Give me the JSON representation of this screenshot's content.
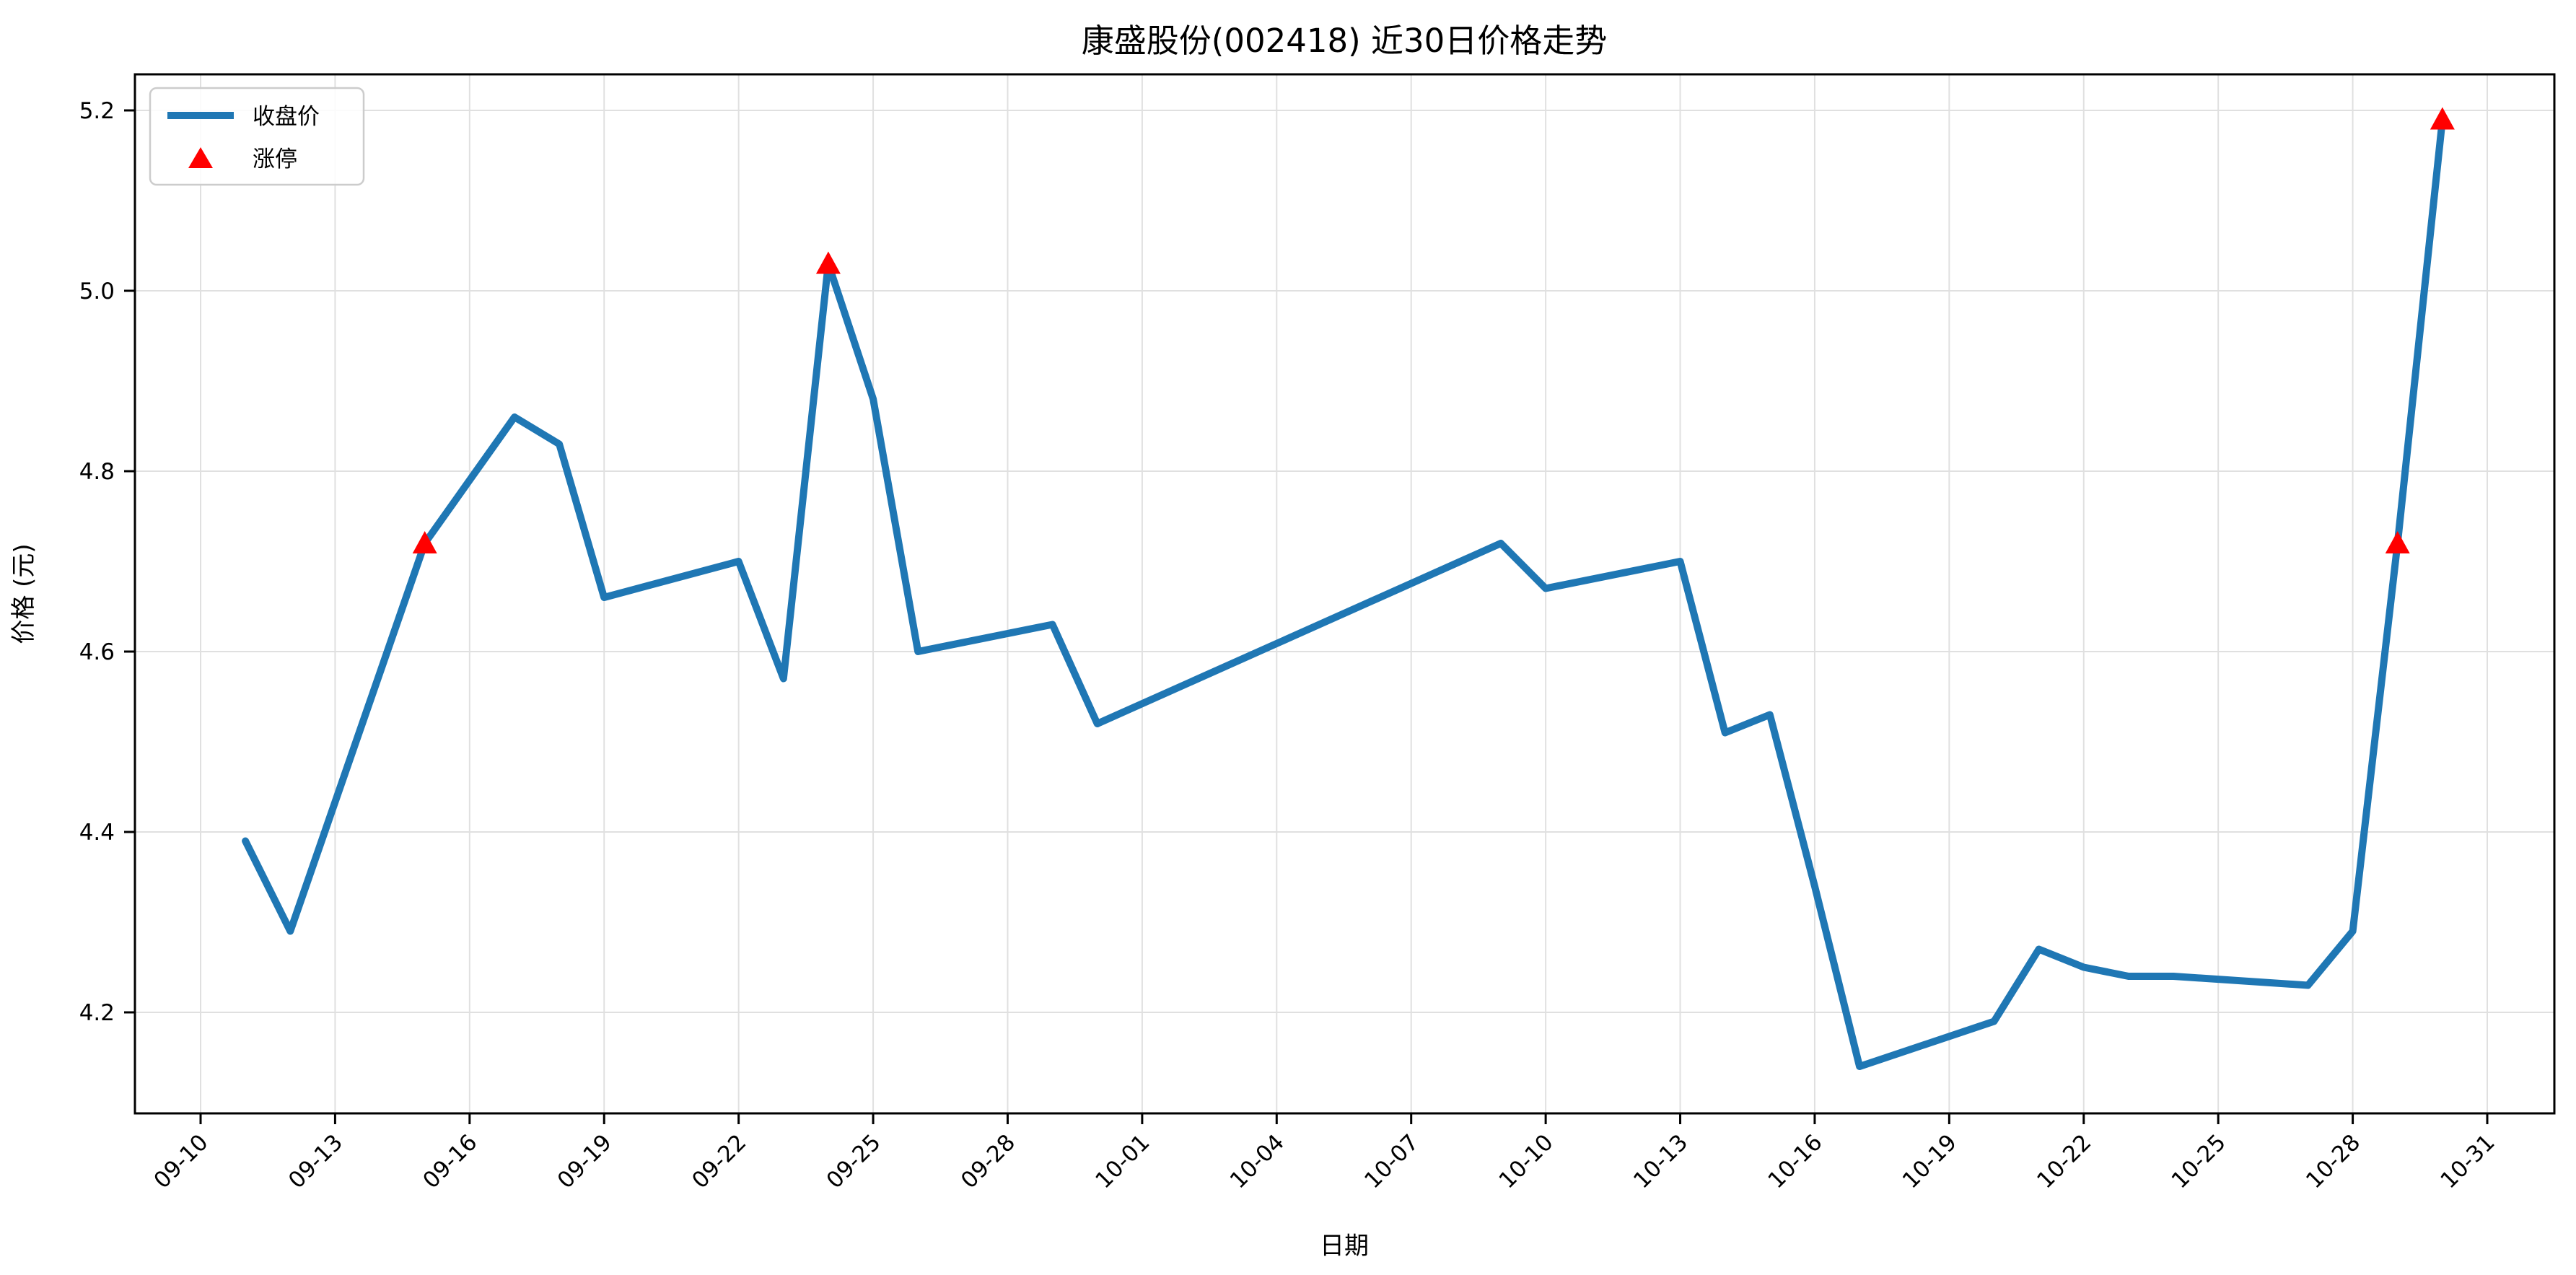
{
  "title": "康盛股份(002418) 近30日价格走势",
  "legend": {
    "items": [
      {
        "label": "收盘价",
        "type": "line",
        "color": "#1f77b4"
      },
      {
        "label": "涨停",
        "type": "triangle",
        "color": "#ff0000"
      }
    ]
  },
  "chart_data": {
    "type": "line",
    "title": "康盛股份(002418) 近30日价格走势",
    "xlabel": "日期",
    "ylabel": "价格 (元)",
    "grid": true,
    "legend_position": "upper left",
    "line_color": "#1f77b4",
    "marker_color": "#ff0000",
    "grid_color": "#e0e0e0",
    "spine_color": "#000000",
    "ylim": [
      4.09,
      5.28
    ],
    "y_ticks": [
      4.2,
      4.4,
      4.6,
      4.8,
      5.0,
      5.2
    ],
    "x_axis_start_date": "09-10",
    "x_tick_step_days": 3,
    "x_tick_labels": [
      "09-10",
      "09-13",
      "09-16",
      "09-19",
      "09-22",
      "09-25",
      "09-28",
      "10-01",
      "10-04",
      "10-07",
      "10-10",
      "10-13",
      "10-16",
      "10-19",
      "10-22",
      "10-25",
      "10-28",
      "10-31"
    ],
    "x_tick_days": [
      0,
      3,
      6,
      9,
      12,
      15,
      18,
      21,
      24,
      27,
      30,
      33,
      36,
      39,
      42,
      45,
      48,
      51
    ],
    "series": [
      {
        "name": "收盘价",
        "points": [
          {
            "date": "09-11",
            "day": 1,
            "close": 4.39,
            "limit_up": false
          },
          {
            "date": "09-12",
            "day": 2,
            "close": 4.29,
            "limit_up": false
          },
          {
            "date": "09-15",
            "day": 5,
            "close": 4.72,
            "limit_up": true
          },
          {
            "date": "09-16",
            "day": 6,
            "close": 4.79,
            "limit_up": false
          },
          {
            "date": "09-17",
            "day": 7,
            "close": 4.86,
            "limit_up": false
          },
          {
            "date": "09-18",
            "day": 8,
            "close": 4.83,
            "limit_up": false
          },
          {
            "date": "09-19",
            "day": 9,
            "close": 4.66,
            "limit_up": false
          },
          {
            "date": "09-22",
            "day": 12,
            "close": 4.7,
            "limit_up": false
          },
          {
            "date": "09-23",
            "day": 13,
            "close": 4.57,
            "limit_up": false
          },
          {
            "date": "09-24",
            "day": 14,
            "close": 5.03,
            "limit_up": true
          },
          {
            "date": "09-25",
            "day": 15,
            "close": 4.88,
            "limit_up": false
          },
          {
            "date": "09-26",
            "day": 16,
            "close": 4.6,
            "limit_up": false
          },
          {
            "date": "09-29",
            "day": 19,
            "close": 4.63,
            "limit_up": false
          },
          {
            "date": "09-30",
            "day": 20,
            "close": 4.52,
            "limit_up": false
          },
          {
            "date": "10-09",
            "day": 29,
            "close": 4.72,
            "limit_up": false
          },
          {
            "date": "10-10",
            "day": 30,
            "close": 4.67,
            "limit_up": false
          },
          {
            "date": "10-13",
            "day": 33,
            "close": 4.7,
            "limit_up": false
          },
          {
            "date": "10-14",
            "day": 34,
            "close": 4.51,
            "limit_up": false
          },
          {
            "date": "10-15",
            "day": 35,
            "close": 4.53,
            "limit_up": false
          },
          {
            "date": "10-16",
            "day": 36,
            "close": 4.34,
            "limit_up": false
          },
          {
            "date": "10-17",
            "day": 37,
            "close": 4.14,
            "limit_up": false
          },
          {
            "date": "10-20",
            "day": 40,
            "close": 4.19,
            "limit_up": false
          },
          {
            "date": "10-21",
            "day": 41,
            "close": 4.27,
            "limit_up": false
          },
          {
            "date": "10-22",
            "day": 42,
            "close": 4.25,
            "limit_up": false
          },
          {
            "date": "10-23",
            "day": 43,
            "close": 4.24,
            "limit_up": false
          },
          {
            "date": "10-24",
            "day": 44,
            "close": 4.24,
            "limit_up": false
          },
          {
            "date": "10-27",
            "day": 47,
            "close": 4.23,
            "limit_up": false
          },
          {
            "date": "10-28",
            "day": 48,
            "close": 4.29,
            "limit_up": false
          },
          {
            "date": "10-29",
            "day": 49,
            "close": 4.72,
            "limit_up": true
          },
          {
            "date": "10-30",
            "day": 50,
            "close": 5.19,
            "limit_up": true
          }
        ]
      }
    ]
  }
}
